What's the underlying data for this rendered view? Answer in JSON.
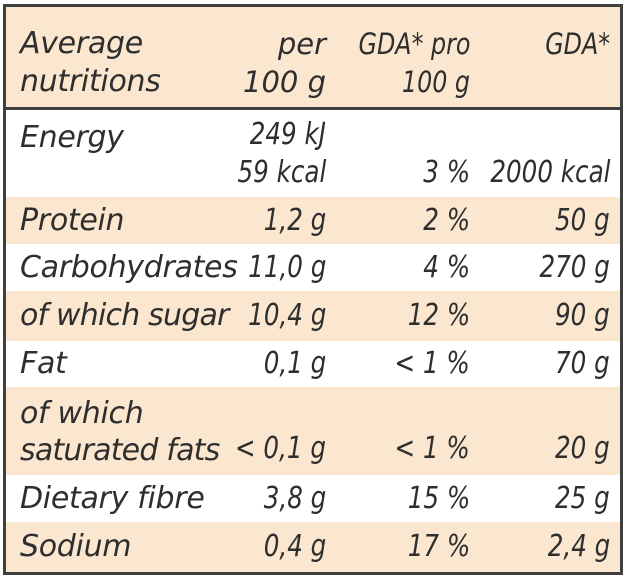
{
  "header": {
    "col0": [
      "Average",
      "nutritions"
    ],
    "col1": [
      "per",
      "100 g"
    ],
    "col2": [
      "GDA* pro",
      "100 g"
    ],
    "col3": "GDA*"
  },
  "rows": [
    {
      "label": "Energy",
      "per100": [
        "249 kJ",
        "59 kcal"
      ],
      "gda_pct": "3 %",
      "gda": "2000 kcal",
      "shaded": false
    },
    {
      "label": "Protein",
      "per100": "1,2 g",
      "gda_pct": "2 %",
      "gda": "50 g",
      "shaded": true
    },
    {
      "label": "Carbohydrates",
      "per100": "11,0 g",
      "gda_pct": "4 %",
      "gda": "270 g",
      "shaded": false
    },
    {
      "label": "of which sugar",
      "per100": "10,4 g",
      "gda_pct": "12 %",
      "gda": "90 g",
      "shaded": true
    },
    {
      "label": "Fat",
      "per100": "0,1 g",
      "gda_pct": "< 1 %",
      "gda": "70 g",
      "shaded": false
    },
    {
      "label": [
        "of which",
        "saturated fats"
      ],
      "per100": "< 0,1 g",
      "gda_pct": "< 1 %",
      "gda": "20 g",
      "shaded": true
    },
    {
      "label": "Dietary fibre",
      "per100": "3,8 g",
      "gda_pct": "15 %",
      "gda": "25 g",
      "shaded": false
    },
    {
      "label": "Sodium",
      "per100": "0,4 g",
      "gda_pct": "17 %",
      "gda": "2,4 g",
      "shaded": true
    }
  ],
  "colors": {
    "shade": "#fbe7cf",
    "border": "#3f3f3f",
    "text": "#2e2e2e"
  }
}
